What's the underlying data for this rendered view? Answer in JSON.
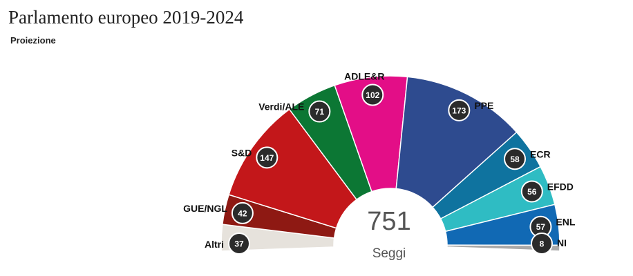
{
  "title": "Parlamento europeo 2019-2024",
  "subtitle": "Proiezione",
  "chart_data": {
    "type": "parliament",
    "title": "Parlamento europeo 2019-2024",
    "subtitle": "Proiezione",
    "total": 751,
    "total_label": "Seggi",
    "series": [
      {
        "name": "Altri",
        "value": 37,
        "color": "#e6e2dc"
      },
      {
        "name": "GUE/NGL",
        "value": 42,
        "color": "#8e1913"
      },
      {
        "name": "S&D",
        "value": 147,
        "color": "#c3171a"
      },
      {
        "name": "Verdi/ALE",
        "value": 71,
        "color": "#0c7734"
      },
      {
        "name": "ADLE&R",
        "value": 102,
        "color": "#e30e87"
      },
      {
        "name": "PPE",
        "value": 173,
        "color": "#2e4b8f"
      },
      {
        "name": "ECR",
        "value": 58,
        "color": "#0f739f"
      },
      {
        "name": "EFDD",
        "value": 56,
        "color": "#2fbcc3"
      },
      {
        "name": "ENL",
        "value": 57,
        "color": "#1169b4"
      },
      {
        "name": "NI",
        "value": 8,
        "color": "#a9a9a9"
      }
    ]
  }
}
